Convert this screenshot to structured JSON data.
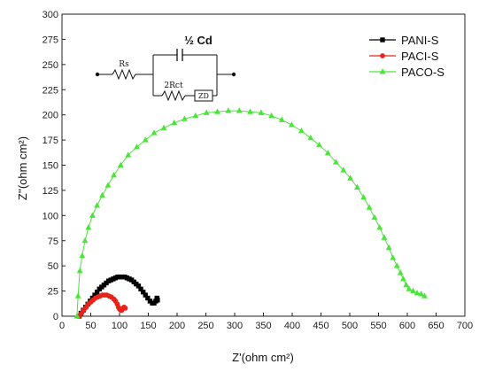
{
  "chart_data": {
    "type": "scatter",
    "title": "",
    "xlabel": "Z'(ohm cm²)",
    "ylabel": "Z''(ohm cm²)",
    "xlim": [
      0,
      700
    ],
    "ylim": [
      0,
      300
    ],
    "xticks": [
      0,
      50,
      100,
      150,
      200,
      250,
      300,
      350,
      400,
      450,
      500,
      550,
      600,
      650,
      700
    ],
    "yticks": [
      0,
      25,
      50,
      75,
      100,
      125,
      150,
      175,
      200,
      225,
      250,
      275,
      300
    ],
    "grid": false,
    "legend_position": "top-right",
    "series": [
      {
        "name": "PANI-S",
        "color": "#000000",
        "marker": "square",
        "points": [
          [
            30,
            0
          ],
          [
            33,
            3
          ],
          [
            37,
            6
          ],
          [
            41,
            9
          ],
          [
            45,
            12
          ],
          [
            49,
            15
          ],
          [
            53,
            18
          ],
          [
            57,
            21
          ],
          [
            61,
            24
          ],
          [
            65,
            27
          ],
          [
            69,
            29
          ],
          [
            73,
            31
          ],
          [
            77,
            33
          ],
          [
            81,
            35
          ],
          [
            85,
            36
          ],
          [
            89,
            37
          ],
          [
            93,
            38
          ],
          [
            97,
            39
          ],
          [
            101,
            39
          ],
          [
            105,
            39
          ],
          [
            109,
            39
          ],
          [
            113,
            38
          ],
          [
            117,
            37
          ],
          [
            121,
            36
          ],
          [
            125,
            34
          ],
          [
            129,
            32
          ],
          [
            133,
            30
          ],
          [
            137,
            27
          ],
          [
            141,
            24
          ],
          [
            145,
            21
          ],
          [
            149,
            18
          ],
          [
            153,
            15
          ],
          [
            157,
            13
          ],
          [
            160,
            13
          ],
          [
            163,
            15
          ],
          [
            165,
            18
          ],
          [
            166,
            16
          ]
        ]
      },
      {
        "name": "PACI-S",
        "color": "#e8231b",
        "marker": "circle",
        "points": [
          [
            30,
            0
          ],
          [
            34,
            3
          ],
          [
            38,
            6
          ],
          [
            42,
            9
          ],
          [
            46,
            12
          ],
          [
            50,
            14
          ],
          [
            54,
            16
          ],
          [
            58,
            18
          ],
          [
            62,
            19
          ],
          [
            66,
            20
          ],
          [
            70,
            21
          ],
          [
            74,
            21
          ],
          [
            78,
            21
          ],
          [
            82,
            20
          ],
          [
            86,
            19
          ],
          [
            90,
            17
          ],
          [
            93,
            15
          ],
          [
            96,
            12
          ],
          [
            98,
            9
          ],
          [
            100,
            7
          ],
          [
            102,
            6
          ],
          [
            104,
            6
          ],
          [
            106,
            8
          ],
          [
            108,
            9
          ],
          [
            110,
            8
          ]
        ]
      },
      {
        "name": "PACO-S",
        "color": "#4de33c",
        "marker": "triangle",
        "points": [
          [
            26,
            0
          ],
          [
            28,
            20
          ],
          [
            31,
            45
          ],
          [
            35,
            60
          ],
          [
            40,
            75
          ],
          [
            46,
            88
          ],
          [
            53,
            100
          ],
          [
            61,
            110
          ],
          [
            70,
            120
          ],
          [
            80,
            130
          ],
          [
            90,
            140
          ],
          [
            102,
            150
          ],
          [
            115,
            160
          ],
          [
            130,
            168
          ],
          [
            145,
            175
          ],
          [
            160,
            182
          ],
          [
            177,
            187
          ],
          [
            195,
            192
          ],
          [
            213,
            196
          ],
          [
            232,
            199
          ],
          [
            251,
            202
          ],
          [
            270,
            203
          ],
          [
            289,
            204
          ],
          [
            308,
            204
          ],
          [
            327,
            203
          ],
          [
            346,
            202
          ],
          [
            364,
            199
          ],
          [
            382,
            195
          ],
          [
            399,
            190
          ],
          [
            416,
            184
          ],
          [
            432,
            177
          ],
          [
            447,
            170
          ],
          [
            462,
            162
          ],
          [
            476,
            153
          ],
          [
            489,
            145
          ],
          [
            501,
            137
          ],
          [
            513,
            128
          ],
          [
            524,
            118
          ],
          [
            534,
            108
          ],
          [
            543,
            98
          ],
          [
            552,
            88
          ],
          [
            560,
            78
          ],
          [
            568,
            68
          ],
          [
            575,
            58
          ],
          [
            582,
            50
          ],
          [
            588,
            43
          ],
          [
            593,
            37
          ],
          [
            598,
            31
          ],
          [
            603,
            27
          ],
          [
            610,
            25
          ],
          [
            617,
            23
          ],
          [
            624,
            22
          ],
          [
            630,
            20
          ]
        ]
      }
    ]
  },
  "circuit": {
    "rs_label": "Rs",
    "cd_label": "½ Cd",
    "rct_label": "2Rct",
    "zd_label": "ZD"
  }
}
